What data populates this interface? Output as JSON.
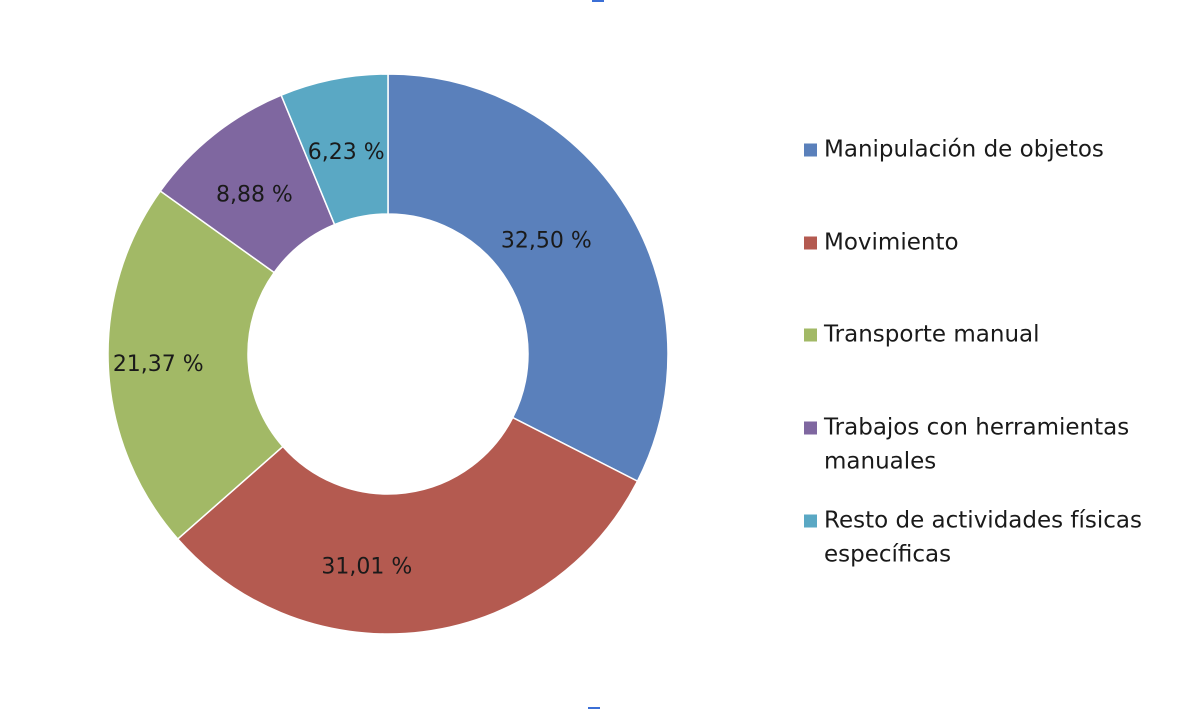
{
  "chart_data": {
    "type": "pie",
    "variant": "donut",
    "title": "",
    "legend_position": "right",
    "slices": [
      {
        "label": "Manipulación de objetos",
        "value": 32.5,
        "value_label": "32,50 %",
        "color": "#5a80bb"
      },
      {
        "label": "Movimiento",
        "value": 31.01,
        "value_label": "31,01 %",
        "color": "#b45a50"
      },
      {
        "label": "Transporte manual",
        "value": 21.37,
        "value_label": "21,37 %",
        "color": "#a2b966"
      },
      {
        "label": "Trabajos con herramientas manuales",
        "legend_lines": [
          "Trabajos con herramientas",
          "manuales"
        ],
        "value": 8.88,
        "value_label": "8,88 %",
        "color": "#7f67a0"
      },
      {
        "label": "Resto de actividades físicas específicas",
        "legend_lines": [
          "Resto de actividades físicas",
          "específicas"
        ],
        "value": 6.23,
        "value_label": "6,23 %",
        "color": "#5aa8c4"
      }
    ]
  }
}
